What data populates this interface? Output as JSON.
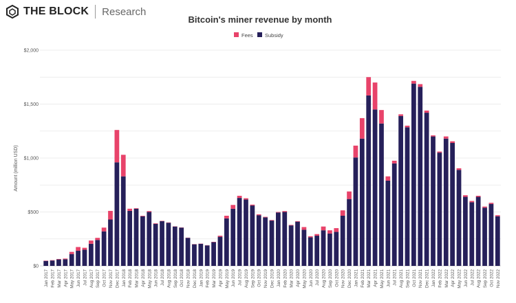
{
  "brand": {
    "name": "THE BLOCK",
    "sub": "Research"
  },
  "colors": {
    "fees": "#e8436a",
    "subsidy": "#26205a",
    "grid": "#e6e6e6",
    "text": "#555555"
  },
  "chart_data": {
    "type": "bar",
    "stacked": true,
    "title": "Bitcoin's miner revenue by month",
    "xlabel": "",
    "ylabel": "Amount (million USD)",
    "ylim": [
      0,
      2000
    ],
    "yticks": [
      0,
      500,
      1000,
      1500,
      2000
    ],
    "ytick_labels": [
      "$0",
      "$500",
      "$1,000",
      "$1,500",
      "$2,000"
    ],
    "grid": true,
    "legend_position": "top-center",
    "categories": [
      "Jan 2017",
      "Feb 2017",
      "Mar 2017",
      "Apr 2017",
      "May 2017",
      "Jun 2017",
      "Jul 2017",
      "Aug 2017",
      "Sep 2017",
      "Oct 2017",
      "Nov 2017",
      "Dec 2017",
      "Jan 2018",
      "Feb 2018",
      "Mar 2018",
      "Apr 2018",
      "May 2018",
      "Jun 2018",
      "Jul 2018",
      "Aug 2018",
      "Sep 2018",
      "Oct 2018",
      "Nov 2018",
      "Dec 2018",
      "Jan 2019",
      "Feb 2019",
      "Mar 2019",
      "Apr 2019",
      "May 2019",
      "Jun 2019",
      "Jul 2019",
      "Aug 2019",
      "Sep 2019",
      "Oct 2019",
      "Nov 2019",
      "Dec 2019",
      "Jan 2020",
      "Feb 2020",
      "Mar 2020",
      "Apr 2020",
      "May 2020",
      "Jun 2020",
      "Jul 2020",
      "Aug 2020",
      "Sep 2020",
      "Oct 2020",
      "Nov 2020",
      "Dec 2020",
      "Jan 2021",
      "Feb 2021",
      "Mar 2021",
      "Apr 2021",
      "May 2021",
      "Jun 2021",
      "Jul 2021",
      "Aug 2021",
      "Sep 2021",
      "Oct 2021",
      "Nov 2021",
      "Dec 2021",
      "Jan 2022",
      "Feb 2022",
      "Mar 2022",
      "Apr 2022",
      "May 2022",
      "Jun 2022",
      "Jul 2022",
      "Aug 2022",
      "Sep 2022",
      "Oct 2022",
      "Nov 2022"
    ],
    "series": [
      {
        "name": "Subsidy",
        "values": [
          46,
          50,
          60,
          62,
          110,
          140,
          150,
          205,
          240,
          320,
          430,
          960,
          830,
          510,
          530,
          460,
          500,
          390,
          415,
          400,
          365,
          355,
          260,
          200,
          205,
          190,
          220,
          270,
          440,
          530,
          630,
          615,
          560,
          470,
          450,
          420,
          495,
          500,
          375,
          410,
          335,
          265,
          280,
          330,
          300,
          315,
          465,
          620,
          1005,
          1180,
          1580,
          1450,
          1320,
          790,
          950,
          1390,
          1285,
          1690,
          1660,
          1420,
          1200,
          1050,
          1180,
          1140,
          890,
          640,
          590,
          640,
          540,
          575,
          460
        ]
      },
      {
        "name": "Fees",
        "values": [
          3,
          3,
          4,
          6,
          20,
          35,
          18,
          30,
          20,
          35,
          80,
          300,
          200,
          20,
          5,
          5,
          8,
          5,
          3,
          3,
          2,
          2,
          2,
          2,
          2,
          2,
          3,
          10,
          25,
          35,
          20,
          12,
          8,
          8,
          5,
          5,
          5,
          8,
          5,
          5,
          25,
          10,
          15,
          35,
          30,
          35,
          50,
          70,
          110,
          190,
          170,
          250,
          125,
          40,
          25,
          15,
          15,
          25,
          25,
          20,
          10,
          10,
          20,
          15,
          15,
          15,
          12,
          10,
          10,
          10,
          10
        ]
      }
    ]
  }
}
